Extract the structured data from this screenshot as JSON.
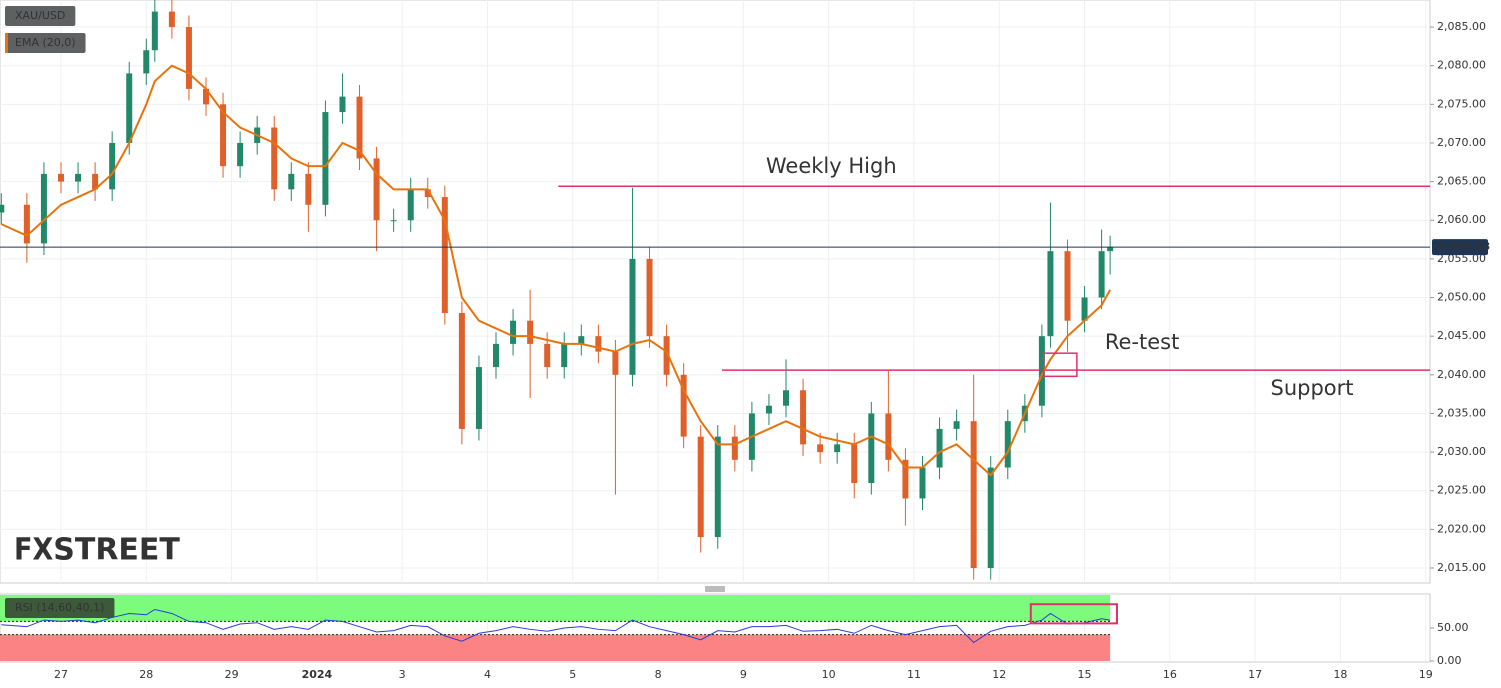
{
  "chart_data": [
    {
      "type": "candlestick",
      "legend": "XAU/USD",
      "x": [
        -0.7,
        -0.4,
        -0.2,
        0,
        0.2,
        0.4,
        0.6,
        0.8,
        1.0,
        1.1,
        1.3,
        1.5,
        1.7,
        1.9,
        2.1,
        2.3,
        2.5,
        2.7,
        2.9,
        3.1,
        3.3,
        3.5,
        3.7,
        3.9,
        4.1,
        4.3,
        4.5,
        4.7,
        4.9,
        5.1,
        5.3,
        5.5,
        5.7,
        5.9,
        6.1,
        6.3,
        6.5,
        6.7,
        6.9,
        7.1,
        7.3,
        7.5,
        7.7,
        7.9,
        8.1,
        8.3,
        8.5,
        8.7,
        8.9,
        9.1,
        9.3,
        9.5,
        9.7,
        9.9,
        10.1,
        10.3,
        10.5,
        10.7,
        10.9,
        11.1,
        11.3,
        11.5,
        11.6,
        11.8,
        12.0,
        12.2,
        12.3
      ],
      "open": [
        2061,
        2062,
        2057,
        2066,
        2065,
        2066,
        2064,
        2070,
        2079,
        2082,
        2087,
        2085,
        2077,
        2075,
        2067,
        2070,
        2072,
        2064,
        2066,
        2062,
        2074,
        2076,
        2068,
        2060,
        2060,
        2064,
        2063,
        2048,
        2033,
        2041,
        2044,
        2047,
        2044,
        2041,
        2044,
        2045,
        2043,
        2040,
        2055,
        2045,
        2040,
        2032,
        2019,
        2032,
        2029,
        2035,
        2036,
        2038,
        2031,
        2030,
        2031,
        2026,
        2035,
        2029,
        2024,
        2028,
        2033,
        2034,
        2015,
        2028,
        2034,
        2036,
        2045,
        2056,
        2047,
        2050,
        2056
      ],
      "high": [
        2063.5,
        2063.5,
        2067.5,
        2067.5,
        2067.5,
        2067.5,
        2071.5,
        2080.5,
        2083.5,
        2088.5,
        2088.5,
        2086.5,
        2078.5,
        2076.5,
        2071.5,
        2073.5,
        2073.5,
        2067.5,
        2067.5,
        2075.5,
        2079,
        2077.5,
        2069.5,
        2061.5,
        2065.5,
        2065.5,
        2064.5,
        2049.5,
        2042.5,
        2045.5,
        2048.5,
        2051,
        2045.5,
        2045.5,
        2046.5,
        2046.5,
        2044.5,
        2064.2,
        2056.5,
        2046.5,
        2041.5,
        2033.5,
        2033.5,
        2033.5,
        2036.5,
        2037.5,
        2042,
        2039.5,
        2032.5,
        2032.5,
        2032.5,
        2036.5,
        2040.5,
        2030.5,
        2029.5,
        2034.5,
        2035.5,
        2040,
        2029.5,
        2035.5,
        2037.5,
        2046.5,
        2062.3,
        2057.5,
        2051.5,
        2058.8,
        2058
      ],
      "low": [
        2059.5,
        2054.5,
        2055.5,
        2063.5,
        2063.5,
        2062.5,
        2062.5,
        2068.5,
        2077.5,
        2080.5,
        2083.5,
        2075.5,
        2073.5,
        2065.5,
        2065.5,
        2068.5,
        2062.5,
        2062.5,
        2058.5,
        2060.5,
        2072.5,
        2066.5,
        2056,
        2058.5,
        2058.5,
        2061.5,
        2046.5,
        2031,
        2031.5,
        2039.5,
        2042.5,
        2037,
        2039.5,
        2039.5,
        2042.5,
        2041.5,
        2024.5,
        2038.5,
        2043.5,
        2038.5,
        2030.5,
        2017,
        2017.5,
        2027.5,
        2027.5,
        2033.5,
        2034.5,
        2029.5,
        2028.5,
        2028.5,
        2024,
        2024.5,
        2027.5,
        2020.5,
        2022.5,
        2026.5,
        2031.5,
        2013.5,
        2013.5,
        2026.5,
        2032.5,
        2034.5,
        2043.5,
        2043,
        2045.5,
        2048.5,
        2053
      ],
      "close": [
        2062,
        2057,
        2066,
        2065,
        2066,
        2064,
        2070,
        2079,
        2082,
        2087,
        2085,
        2077,
        2075,
        2067,
        2070,
        2072,
        2064,
        2066,
        2062,
        2074,
        2076,
        2068,
        2060,
        2060,
        2064,
        2063,
        2048,
        2033,
        2041,
        2044,
        2047,
        2044,
        2041,
        2044,
        2045,
        2043,
        2040,
        2055,
        2045,
        2040,
        2032,
        2019,
        2032,
        2029,
        2035,
        2036,
        2038,
        2031,
        2030,
        2031,
        2026,
        2035,
        2029,
        2024,
        2028,
        2033,
        2034,
        2015,
        2028,
        2034,
        2036,
        2045,
        2056,
        2047,
        2050,
        2056,
        2056.5
      ],
      "up_color": "#22886a",
      "down_color": "#e0602a",
      "series": [
        {
          "name": "EMA (20,0)",
          "color": "#e8730c",
          "values": [
            2059.5,
            2058,
            2060,
            2062,
            2063,
            2064,
            2066,
            2070,
            2075,
            2078,
            2080,
            2079,
            2077,
            2074,
            2072,
            2071,
            2070,
            2068,
            2067,
            2067,
            2070,
            2069,
            2066,
            2064,
            2064,
            2064,
            2060,
            2050,
            2047,
            2046,
            2045,
            2045,
            2044.5,
            2044,
            2044,
            2043.5,
            2043,
            2044,
            2044.5,
            2043,
            2038,
            2034,
            2031,
            2031,
            2032,
            2033,
            2034,
            2033,
            2032,
            2031.5,
            2031,
            2032,
            2031,
            2028,
            2028,
            2030,
            2031,
            2029,
            2027,
            2030,
            2035,
            2040,
            2042,
            2045,
            2047,
            2049,
            2051
          ]
        }
      ],
      "xlim": [
        -0.715,
        16.05
      ],
      "ylim": [
        2013.06,
        2088.5
      ],
      "xticks": [
        {
          "value": 0,
          "label": "27"
        },
        {
          "value": 1,
          "label": "28"
        },
        {
          "value": 2,
          "label": "29"
        },
        {
          "value": 3,
          "label": "2024"
        },
        {
          "value": 4,
          "label": "3"
        },
        {
          "value": 5,
          "label": "4"
        },
        {
          "value": 6,
          "label": "5"
        },
        {
          "value": 7,
          "label": "8"
        },
        {
          "value": 8,
          "label": "9"
        },
        {
          "value": 9,
          "label": "10"
        },
        {
          "value": 10,
          "label": "11"
        },
        {
          "value": 11,
          "label": "12"
        },
        {
          "value": 12,
          "label": "15"
        },
        {
          "value": 13,
          "label": "16"
        },
        {
          "value": 14,
          "label": "17"
        },
        {
          "value": 15,
          "label": "18"
        },
        {
          "value": 16,
          "label": "19"
        }
      ],
      "yticks": [
        {
          "value": 2015,
          "label": "2,015.00"
        },
        {
          "value": 2020,
          "label": "2,020.00"
        },
        {
          "value": 2025,
          "label": "2,025.00"
        },
        {
          "value": 2030,
          "label": "2,030.00"
        },
        {
          "value": 2035,
          "label": "2,035.00"
        },
        {
          "value": 2040,
          "label": "2,040.00"
        },
        {
          "value": 2045,
          "label": "2,045.00"
        },
        {
          "value": 2050,
          "label": "2,050.00"
        },
        {
          "value": 2055,
          "label": "2,055.00"
        },
        {
          "value": 2060,
          "label": "2,060.00"
        },
        {
          "value": 2065,
          "label": "2,065.00"
        },
        {
          "value": 2070,
          "label": "2,070.00"
        },
        {
          "value": 2075,
          "label": "2,075.00"
        },
        {
          "value": 2080,
          "label": "2,080.00"
        },
        {
          "value": 2085,
          "label": "2,085.00"
        }
      ],
      "grid": true,
      "last": {
        "value": 2056.53,
        "label": "2,056.53"
      },
      "annotation_color": "#e0306e",
      "levels": [
        {
          "label": "Weekly High",
          "value": 2064.4,
          "from": 5.83
        },
        {
          "label": "Support",
          "value": 2040.6,
          "from": 7.75
        }
      ],
      "retest": {
        "label": "Re-test",
        "x": [
          11.52,
          11.91
        ],
        "y": [
          2039.8,
          2042.8
        ]
      },
      "watermark": {
        "left": "FX",
        "right": "STREET"
      }
    },
    {
      "type": "line",
      "series": [
        {
          "name": "RSI (14,60,40,1)",
          "color": "#2a3bd8",
          "values": [
            55,
            52,
            62,
            60,
            62,
            58,
            66,
            72,
            70,
            78,
            72,
            60,
            58,
            48,
            56,
            58,
            48,
            52,
            48,
            62,
            60,
            52,
            44,
            46,
            54,
            52,
            38,
            30,
            42,
            46,
            52,
            48,
            45,
            50,
            52,
            48,
            46,
            62,
            52,
            46,
            40,
            32,
            46,
            44,
            52,
            52,
            54,
            45,
            46,
            48,
            42,
            54,
            46,
            40,
            46,
            52,
            54,
            28,
            45,
            52,
            54,
            62,
            72,
            56,
            58,
            64,
            62
          ]
        }
      ],
      "ylim": [
        0,
        101.5
      ],
      "yticks": [
        {
          "value": 50,
          "label": "50.00"
        },
        {
          "value": 0,
          "label": "0.00"
        }
      ],
      "zones": [
        {
          "range": [
            60,
            100
          ],
          "color": "#7dfb7d"
        },
        {
          "range": [
            0,
            40
          ],
          "color": "#fb8383"
        }
      ],
      "box": {
        "x": [
          11.37,
          12.38
        ],
        "y": [
          57,
          86
        ]
      }
    }
  ]
}
